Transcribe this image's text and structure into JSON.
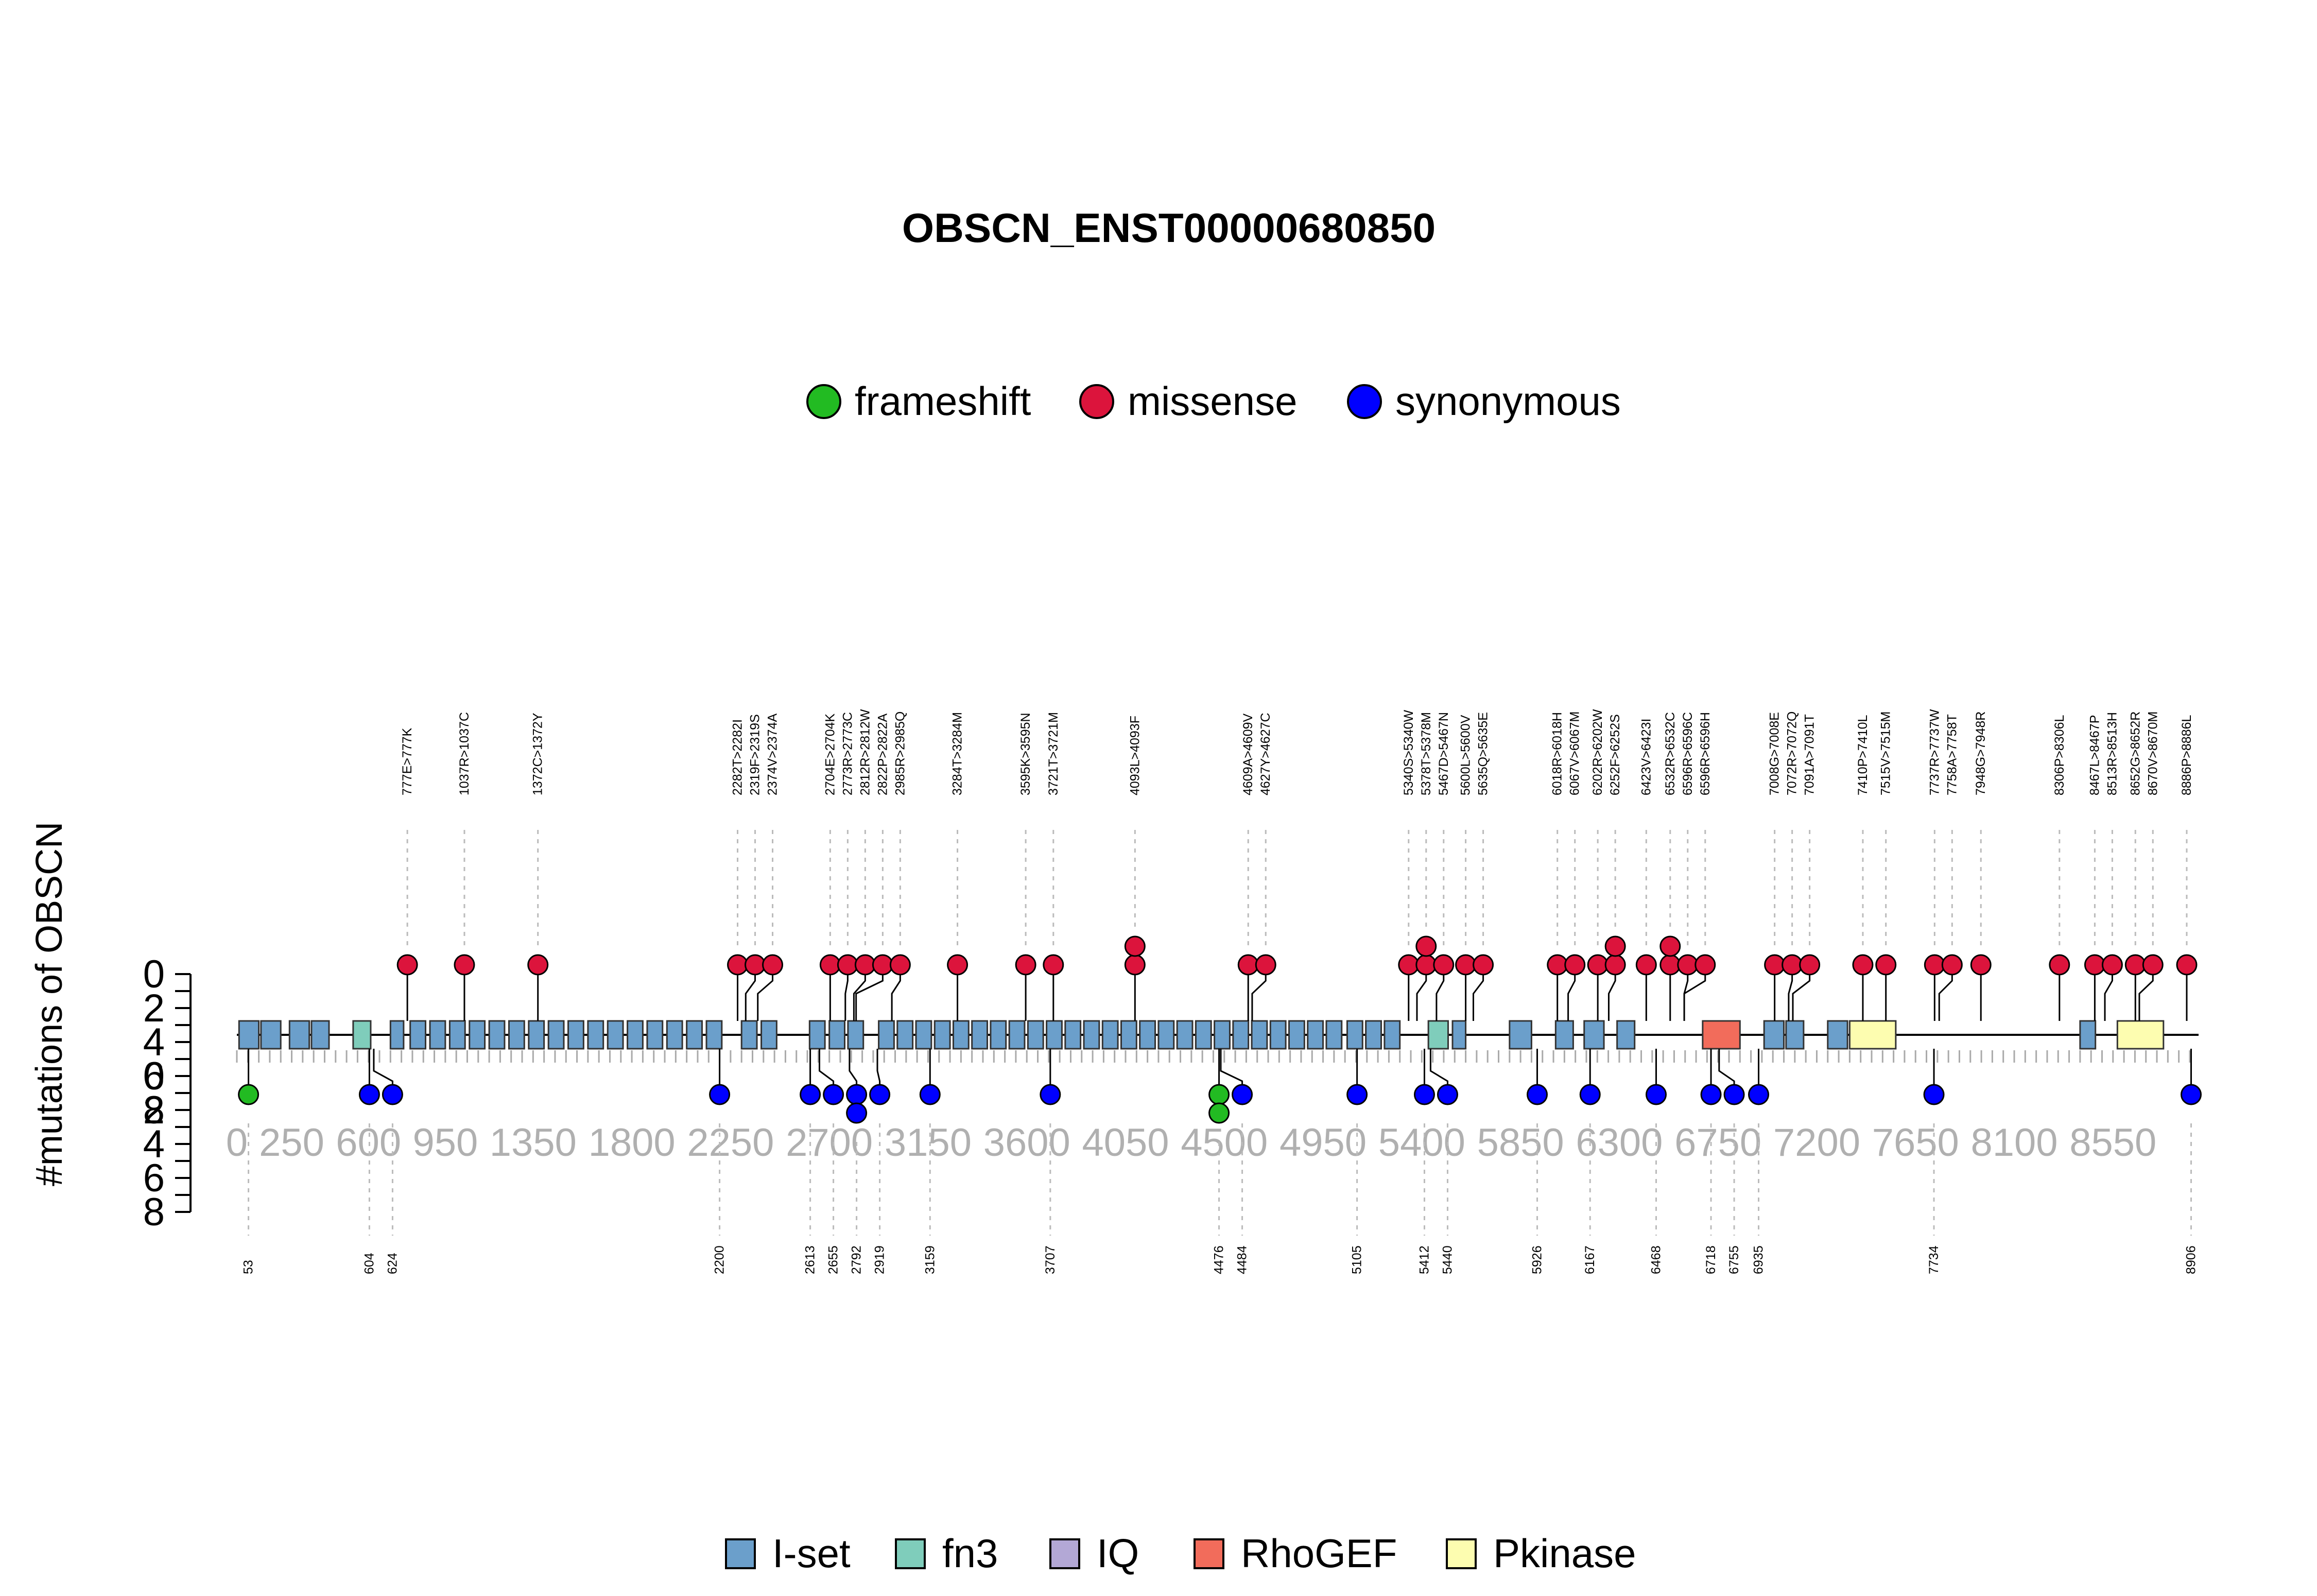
{
  "chart_data": {
    "type": "lollipop",
    "title": "OBSCN_ENST00000680850",
    "ylabel": "#mutations of OBSCN",
    "y_ticks_top": [
      "8",
      "6",
      "4",
      "2",
      "0"
    ],
    "y_ticks_bottom": [
      "0",
      "2",
      "4",
      "6",
      "8"
    ],
    "ylim": [
      0,
      8
    ],
    "x_tick_labels": [
      "0",
      "250",
      "600",
      "950",
      "1350",
      "1800",
      "2250",
      "2700",
      "3150",
      "3600",
      "4050",
      "4500",
      "4950",
      "5400",
      "5850",
      "6300",
      "6750",
      "7200",
      "7650",
      "8100",
      "8550"
    ],
    "x_tick_values": [
      0,
      250,
      600,
      950,
      1350,
      1800,
      2250,
      2700,
      3150,
      3600,
      4050,
      4500,
      4950,
      5400,
      5850,
      6300,
      6750,
      7200,
      7650,
      8100,
      8550
    ],
    "xlim": [
      0,
      8940
    ],
    "mutation_legend": [
      {
        "name": "frameshift",
        "color": "#22bb22"
      },
      {
        "name": "missense",
        "color": "#dc143c"
      },
      {
        "name": "synonymous",
        "color": "#0000ff"
      }
    ],
    "domain_legend": [
      {
        "name": "I-set",
        "color": "#6b9fcb"
      },
      {
        "name": "fn3",
        "color": "#7fcdbb"
      },
      {
        "name": "IQ",
        "color": "#b3a8d6"
      },
      {
        "name": "RhoGEF",
        "color": "#f26c5b"
      },
      {
        "name": "Pkinase",
        "color": "#fdfdb0"
      }
    ],
    "top_mutations": [
      {
        "pos": 777,
        "count": 1,
        "label": "777E>777K"
      },
      {
        "pos": 1037,
        "count": 1,
        "label": "1037R>1037C"
      },
      {
        "pos": 1372,
        "count": 1,
        "label": "1372C>1372Y"
      },
      {
        "pos": 2282,
        "count": 1,
        "label": "2282T>2282I"
      },
      {
        "pos": 2319,
        "count": 1,
        "label": "2319F>2319S"
      },
      {
        "pos": 2374,
        "count": 1,
        "label": "2374V>2374A"
      },
      {
        "pos": 2704,
        "count": 1,
        "label": "2704E>2704K"
      },
      {
        "pos": 2773,
        "count": 1,
        "label": "2773R>2773C"
      },
      {
        "pos": 2812,
        "count": 1,
        "label": "2812R>2812W"
      },
      {
        "pos": 2822,
        "count": 1,
        "label": "2822P>2822A"
      },
      {
        "pos": 2985,
        "count": 1,
        "label": "2985R>2985Q"
      },
      {
        "pos": 3284,
        "count": 1,
        "label": "3284T>3284M"
      },
      {
        "pos": 3595,
        "count": 1,
        "label": "3595K>3595N"
      },
      {
        "pos": 3721,
        "count": 1,
        "label": "3721T>3721M"
      },
      {
        "pos": 4093,
        "count": 2,
        "label": "4093L>4093F"
      },
      {
        "pos": 4609,
        "count": 1,
        "label": "4609A>4609V"
      },
      {
        "pos": 4627,
        "count": 1,
        "label": "4627Y>4627C"
      },
      {
        "pos": 5340,
        "count": 1,
        "label": "5340S>5340W"
      },
      {
        "pos": 5378,
        "count": 2,
        "label": "5378T>5378M"
      },
      {
        "pos": 5467,
        "count": 1,
        "label": "5467D>5467N"
      },
      {
        "pos": 5600,
        "count": 1,
        "label": "5600L>5600V"
      },
      {
        "pos": 5635,
        "count": 1,
        "label": "5635Q>5635E"
      },
      {
        "pos": 6018,
        "count": 1,
        "label": "6018R>6018H"
      },
      {
        "pos": 6067,
        "count": 1,
        "label": "6067V>6067M"
      },
      {
        "pos": 6202,
        "count": 1,
        "label": "6202R>6202W"
      },
      {
        "pos": 6252,
        "count": 2,
        "label": "6252F>6252S"
      },
      {
        "pos": 6423,
        "count": 1,
        "label": "6423V>6423I"
      },
      {
        "pos": 6532,
        "count": 2,
        "label": "6532R>6532C"
      },
      {
        "pos": 6596,
        "count": 1,
        "label": "6596R>6596C"
      },
      {
        "pos": 6596,
        "count": 1,
        "label": "6596R>6596H"
      },
      {
        "pos": 7008,
        "count": 1,
        "label": "7008G>7008E"
      },
      {
        "pos": 7072,
        "count": 1,
        "label": "7072R>7072Q"
      },
      {
        "pos": 7091,
        "count": 1,
        "label": "7091A>7091T"
      },
      {
        "pos": 7410,
        "count": 1,
        "label": "7410P>7410L"
      },
      {
        "pos": 7515,
        "count": 1,
        "label": "7515V>7515M"
      },
      {
        "pos": 7737,
        "count": 1,
        "label": "7737R>7737W"
      },
      {
        "pos": 7758,
        "count": 1,
        "label": "7758A>7758T"
      },
      {
        "pos": 7948,
        "count": 1,
        "label": "7948G>7948R"
      },
      {
        "pos": 8306,
        "count": 1,
        "label": "8306P>8306L"
      },
      {
        "pos": 8467,
        "count": 1,
        "label": "8467L>8467P"
      },
      {
        "pos": 8513,
        "count": 1,
        "label": "8513R>8513H"
      },
      {
        "pos": 8652,
        "count": 1,
        "label": "8652G>8652R"
      },
      {
        "pos": 8670,
        "count": 1,
        "label": "8670V>8670M"
      },
      {
        "pos": 8886,
        "count": 1,
        "label": "8886P>8886L"
      }
    ],
    "bottom_mutations": [
      {
        "pos": 53,
        "label": "53",
        "types": [
          "frameshift"
        ]
      },
      {
        "pos": 604,
        "label": "604",
        "types": [
          "synonymous"
        ]
      },
      {
        "pos": 624,
        "label": "624",
        "types": [
          "synonymous"
        ]
      },
      {
        "pos": 2200,
        "label": "2200",
        "types": [
          "synonymous"
        ]
      },
      {
        "pos": 2613,
        "label": "2613",
        "types": [
          "synonymous"
        ]
      },
      {
        "pos": 2655,
        "label": "2655",
        "types": [
          "synonymous"
        ]
      },
      {
        "pos": 2792,
        "label": "2792",
        "types": [
          "synonymous",
          "synonymous"
        ]
      },
      {
        "pos": 2919,
        "label": "2919",
        "types": [
          "synonymous"
        ]
      },
      {
        "pos": 3159,
        "label": "3159",
        "types": [
          "synonymous"
        ]
      },
      {
        "pos": 3707,
        "label": "3707",
        "types": [
          "synonymous"
        ]
      },
      {
        "pos": 4476,
        "label": "4476",
        "types": [
          "frameshift",
          "frameshift"
        ]
      },
      {
        "pos": 4484,
        "label": "4484",
        "types": [
          "synonymous"
        ]
      },
      {
        "pos": 5105,
        "label": "5105",
        "types": [
          "synonymous"
        ]
      },
      {
        "pos": 5412,
        "label": "5412",
        "types": [
          "synonymous"
        ]
      },
      {
        "pos": 5440,
        "label": "5440",
        "types": [
          "synonymous"
        ]
      },
      {
        "pos": 5926,
        "label": "5926",
        "types": [
          "synonymous"
        ]
      },
      {
        "pos": 6167,
        "label": "6167",
        "types": [
          "synonymous"
        ]
      },
      {
        "pos": 6468,
        "label": "6468",
        "types": [
          "synonymous"
        ]
      },
      {
        "pos": 6718,
        "label": "6718",
        "types": [
          "synonymous"
        ]
      },
      {
        "pos": 6755,
        "label": "6755",
        "types": [
          "synonymous"
        ]
      },
      {
        "pos": 6935,
        "label": "6935",
        "types": [
          "synonymous"
        ]
      },
      {
        "pos": 7734,
        "label": "7734",
        "types": [
          "synonymous"
        ]
      },
      {
        "pos": 8906,
        "label": "8906",
        "types": [
          "synonymous"
        ]
      }
    ],
    "protein_domains": [
      {
        "name": "I-set",
        "start": 10,
        "end": 100
      },
      {
        "name": "I-set",
        "start": 110,
        "end": 200
      },
      {
        "name": "I-set",
        "start": 240,
        "end": 330
      },
      {
        "name": "I-set",
        "start": 340,
        "end": 420
      },
      {
        "name": "fn3",
        "start": 530,
        "end": 610
      },
      {
        "name": "I-set",
        "start": 700,
        "end": 760
      },
      {
        "name": "I-set",
        "start": 790,
        "end": 860
      },
      {
        "name": "I-set",
        "start": 880,
        "end": 950
      },
      {
        "name": "I-set",
        "start": 970,
        "end": 1040
      },
      {
        "name": "I-set",
        "start": 1060,
        "end": 1130
      },
      {
        "name": "I-set",
        "start": 1150,
        "end": 1220
      },
      {
        "name": "I-set",
        "start": 1240,
        "end": 1310
      },
      {
        "name": "I-set",
        "start": 1330,
        "end": 1400
      },
      {
        "name": "I-set",
        "start": 1420,
        "end": 1490
      },
      {
        "name": "I-set",
        "start": 1510,
        "end": 1580
      },
      {
        "name": "I-set",
        "start": 1600,
        "end": 1670
      },
      {
        "name": "I-set",
        "start": 1690,
        "end": 1760
      },
      {
        "name": "I-set",
        "start": 1780,
        "end": 1850
      },
      {
        "name": "I-set",
        "start": 1870,
        "end": 1940
      },
      {
        "name": "I-set",
        "start": 1960,
        "end": 2030
      },
      {
        "name": "I-set",
        "start": 2050,
        "end": 2120
      },
      {
        "name": "I-set",
        "start": 2140,
        "end": 2210
      },
      {
        "name": "I-set",
        "start": 2300,
        "end": 2370
      },
      {
        "name": "I-set",
        "start": 2390,
        "end": 2460
      },
      {
        "name": "I-set",
        "start": 2610,
        "end": 2680
      },
      {
        "name": "I-set",
        "start": 2700,
        "end": 2770
      },
      {
        "name": "I-set",
        "start": 2785,
        "end": 2855
      },
      {
        "name": "I-set",
        "start": 2925,
        "end": 2995
      },
      {
        "name": "I-set",
        "start": 3010,
        "end": 3080
      },
      {
        "name": "I-set",
        "start": 3095,
        "end": 3165
      },
      {
        "name": "I-set",
        "start": 3180,
        "end": 3250
      },
      {
        "name": "I-set",
        "start": 3265,
        "end": 3335
      },
      {
        "name": "I-set",
        "start": 3350,
        "end": 3420
      },
      {
        "name": "I-set",
        "start": 3435,
        "end": 3505
      },
      {
        "name": "I-set",
        "start": 3520,
        "end": 3590
      },
      {
        "name": "I-set",
        "start": 3605,
        "end": 3675
      },
      {
        "name": "I-set",
        "start": 3690,
        "end": 3760
      },
      {
        "name": "I-set",
        "start": 3775,
        "end": 3845
      },
      {
        "name": "I-set",
        "start": 3860,
        "end": 3930
      },
      {
        "name": "I-set",
        "start": 3945,
        "end": 4015
      },
      {
        "name": "I-set",
        "start": 4030,
        "end": 4100
      },
      {
        "name": "I-set",
        "start": 4115,
        "end": 4185
      },
      {
        "name": "I-set",
        "start": 4200,
        "end": 4270
      },
      {
        "name": "I-set",
        "start": 4285,
        "end": 4355
      },
      {
        "name": "I-set",
        "start": 4370,
        "end": 4440
      },
      {
        "name": "I-set",
        "start": 4455,
        "end": 4525
      },
      {
        "name": "I-set",
        "start": 4540,
        "end": 4610
      },
      {
        "name": "I-set",
        "start": 4625,
        "end": 4695
      },
      {
        "name": "I-set",
        "start": 4710,
        "end": 4780
      },
      {
        "name": "I-set",
        "start": 4795,
        "end": 4865
      },
      {
        "name": "I-set",
        "start": 4880,
        "end": 4950
      },
      {
        "name": "I-set",
        "start": 4965,
        "end": 5035
      },
      {
        "name": "I-set",
        "start": 5060,
        "end": 5130
      },
      {
        "name": "I-set",
        "start": 5145,
        "end": 5215
      },
      {
        "name": "I-set",
        "start": 5230,
        "end": 5300
      },
      {
        "name": "fn3",
        "start": 5430,
        "end": 5520
      },
      {
        "name": "I-set",
        "start": 5540,
        "end": 5600
      },
      {
        "name": "I-set",
        "start": 5800,
        "end": 5900
      },
      {
        "name": "I-set",
        "start": 6010,
        "end": 6090
      },
      {
        "name": "I-set",
        "start": 6140,
        "end": 6230
      },
      {
        "name": "I-set",
        "start": 6290,
        "end": 6370
      },
      {
        "name": "RhoGEF",
        "start": 6680,
        "end": 6850
      },
      {
        "name": "I-set",
        "start": 6960,
        "end": 7050
      },
      {
        "name": "I-set",
        "start": 7060,
        "end": 7140
      },
      {
        "name": "I-set",
        "start": 7250,
        "end": 7340
      },
      {
        "name": "Pkinase",
        "start": 7350,
        "end": 7560
      },
      {
        "name": "I-set",
        "start": 8400,
        "end": 8470
      },
      {
        "name": "Pkinase",
        "start": 8570,
        "end": 8780
      }
    ]
  }
}
